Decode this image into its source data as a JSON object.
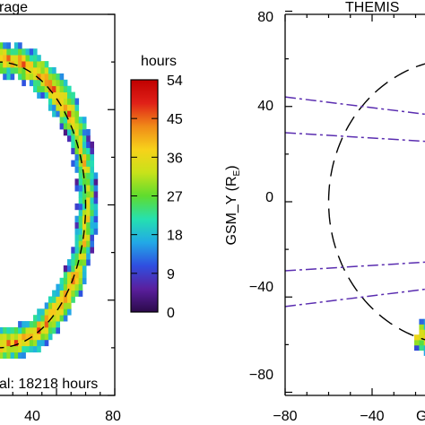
{
  "chart_data": [
    {
      "type": "heatmap",
      "title": "rage",
      "colorbar": {
        "label": "hours",
        "ticks": [
          54,
          45,
          36,
          27,
          18,
          9,
          0
        ],
        "range": [
          0,
          54
        ],
        "colors": [
          "#2b0a4a",
          "#5a1f9e",
          "#2f4fe0",
          "#22a9e6",
          "#25e0b0",
          "#5fdc2e",
          "#c8e21a",
          "#f7d21a",
          "#f08a18",
          "#e02018",
          "#c00000"
        ]
      },
      "xaxis": {
        "ticks": [
          "40",
          "80"
        ],
        "range": [
          0,
          80
        ]
      },
      "annotation": "al: 18218 hours",
      "ring": {
        "radius_re": 60,
        "guide_style": "dashed"
      }
    },
    {
      "type": "heatmap",
      "title": "THEMIS",
      "ylabel": "GSM_Y (R",
      "ylabel_sub": "E",
      "ylabel_close": ")",
      "yaxis": {
        "ticks": [
          "80",
          "40",
          "0",
          "−40",
          "−80"
        ],
        "range": [
          -80,
          80
        ]
      },
      "xaxis": {
        "ticks": [
          "−80",
          "−40",
          "0"
        ],
        "range": [
          -80,
          80
        ]
      },
      "xlabel": "G",
      "ring": {
        "radius_re": 60,
        "guide_style": "dashed"
      },
      "boundary_line_color": "#5a2db0"
    }
  ]
}
